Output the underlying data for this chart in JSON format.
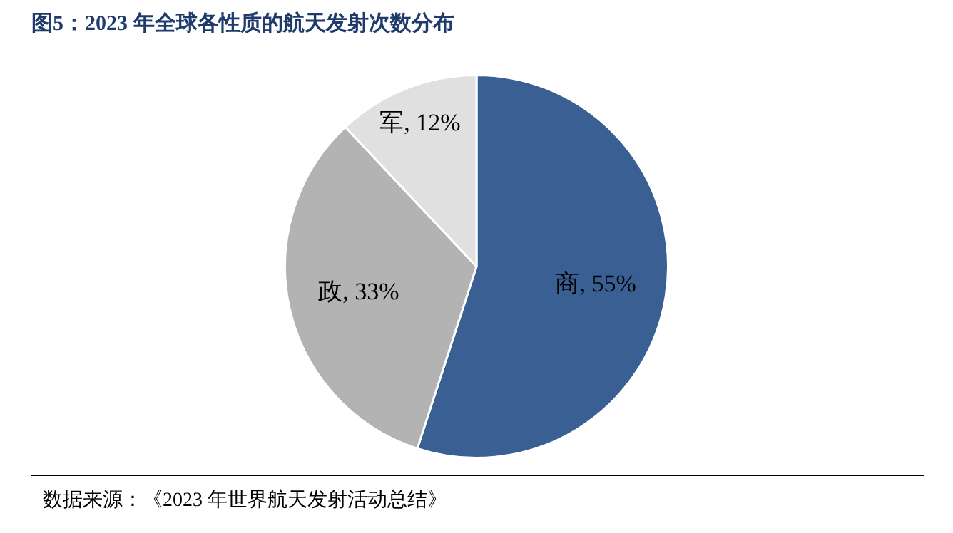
{
  "chart_data": {
    "type": "pie",
    "title": "图5：2023 年全球各性质的航天发射次数分布",
    "categories": [
      "商",
      "政",
      "军"
    ],
    "values": [
      55,
      33,
      12
    ],
    "colors": [
      "#3a5f93",
      "#b3b3b3",
      "#e0e0e0"
    ],
    "value_labels": [
      "55%",
      "33%",
      "12%"
    ],
    "legend": false,
    "annotations": [
      "数据来源：《2023 年世界航天发射活动总结》"
    ]
  }
}
